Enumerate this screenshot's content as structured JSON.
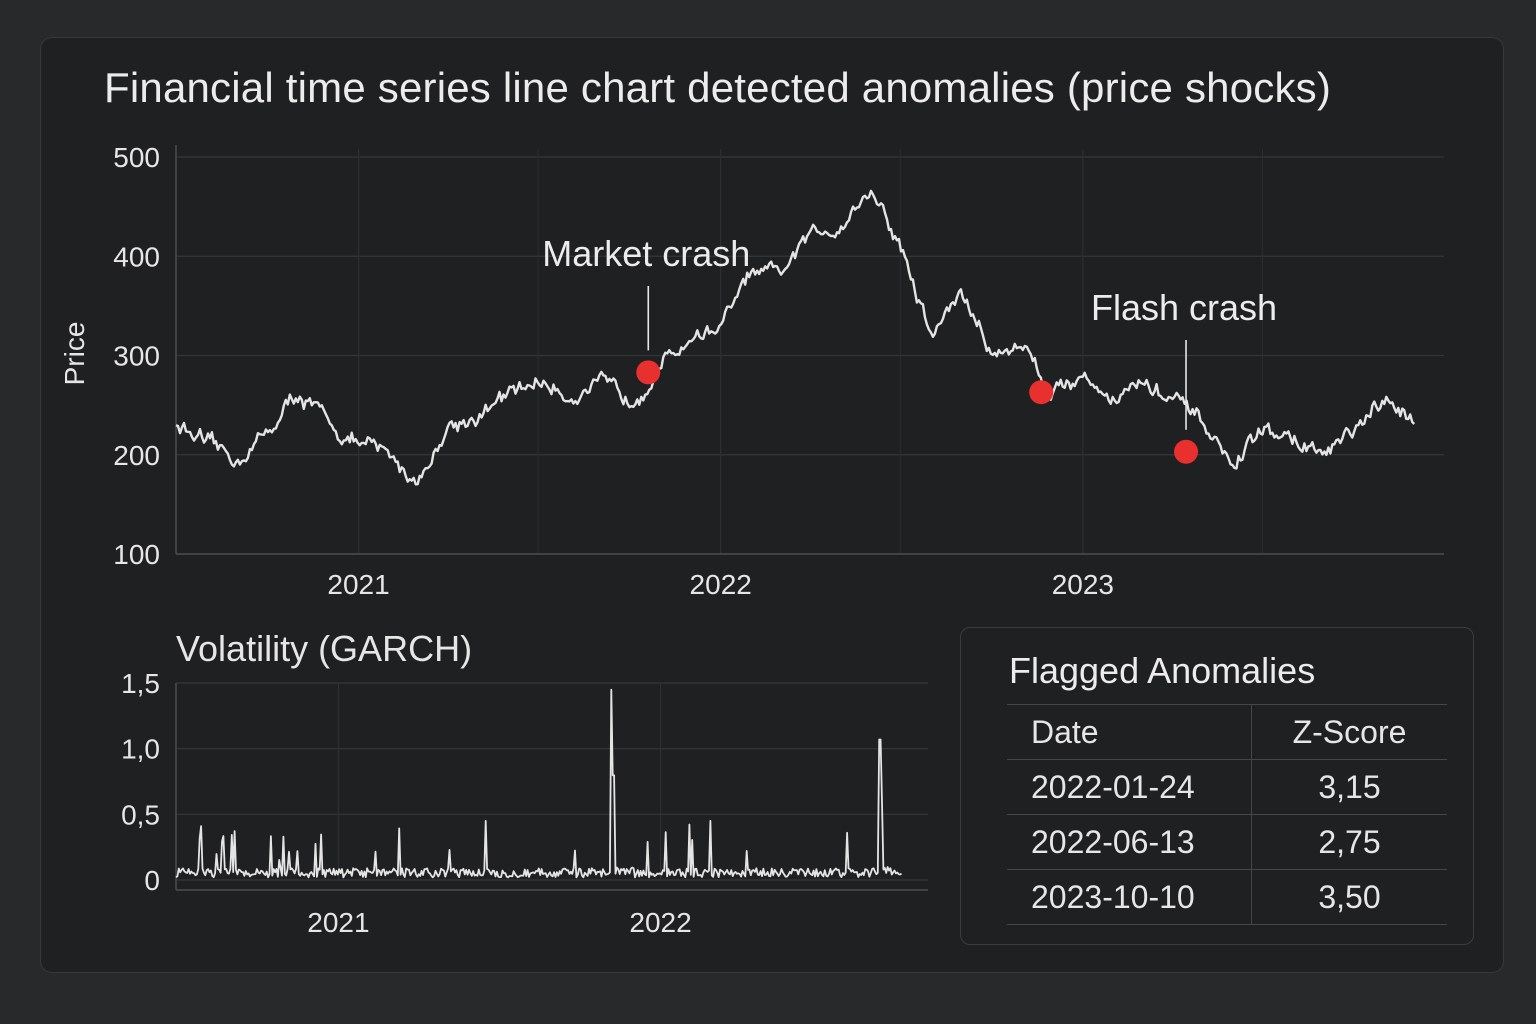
{
  "title": "Financial time series line chart detected anomalies (price shocks)",
  "chart_data": [
    {
      "type": "line",
      "title": "Financial time series line chart detected anomalies (price shocks)",
      "ylabel": "Price",
      "xlabel": "",
      "ylim": [
        100,
        500
      ],
      "xlim": [
        "2020-07-01",
        "2023-12-31"
      ],
      "yticks": [
        "500",
        "400",
        "300",
        "200",
        "100"
      ],
      "xticks": [
        "2021",
        "2022",
        "2023"
      ],
      "grid": true,
      "line_color": "#e4e4e4",
      "anomaly_color": "#e8302e",
      "series": [
        {
          "x": [
            "2020-07-01",
            "2020-08-01",
            "2020-09-01",
            "2020-10-01",
            "2020-11-01",
            "2020-12-01",
            "2021-01-01",
            "2021-02-01",
            "2021-03-01",
            "2021-04-01",
            "2021-05-01",
            "2021-06-01",
            "2021-07-01",
            "2021-08-01",
            "2021-09-01",
            "2021-10-01",
            "2021-11-01",
            "2021-12-01",
            "2022-01-01",
            "2022-02-01",
            "2022-03-01",
            "2022-04-01",
            "2022-05-01",
            "2022-06-01",
            "2022-07-01",
            "2022-08-01",
            "2022-09-01",
            "2022-10-01",
            "2022-11-01",
            "2022-12-01",
            "2023-01-01",
            "2023-02-01",
            "2023-03-01",
            "2023-04-01",
            "2023-05-01",
            "2023-06-01",
            "2023-07-01",
            "2023-08-01",
            "2023-09-01",
            "2023-10-01",
            "2023-11-01",
            "2023-12-01"
          ],
          "values": [
            232,
            208,
            195,
            222,
            262,
            232,
            210,
            200,
            172,
            228,
            240,
            258,
            275,
            260,
            270,
            255,
            290,
            318,
            330,
            382,
            380,
            420,
            432,
            468,
            410,
            320,
            365,
            300,
            312,
            265,
            280,
            258,
            272,
            255,
            232,
            188,
            225,
            215,
            200,
            222,
            250,
            238
          ]
        }
      ],
      "annotations": [
        {
          "text": "Market crash",
          "x": "2021-10-20",
          "y": 283
        },
        {
          "text": "Flash crash",
          "x": "2023-04-15",
          "y": 203
        }
      ],
      "anomalies": [
        {
          "x": "2021-10-20",
          "y": 283
        },
        {
          "x": "2022-11-20",
          "y": 263
        },
        {
          "x": "2023-04-15",
          "y": 203
        }
      ]
    },
    {
      "type": "line",
      "title": "Volatility (GARCH)",
      "ylim": [
        0,
        1.5
      ],
      "xlim": [
        "2020-07-01",
        "2022-10-31"
      ],
      "yticks": [
        "1,5",
        "1,0",
        "0,5",
        "0"
      ],
      "xticks": [
        "2021",
        "2022"
      ],
      "grid": true,
      "series": [
        {
          "x": [
            "2020-07-01",
            "2020-08-01",
            "2020-09-01",
            "2020-10-01",
            "2020-11-01",
            "2020-12-01",
            "2021-01-01",
            "2021-02-01",
            "2021-03-01",
            "2021-04-01",
            "2021-05-01",
            "2021-06-01",
            "2021-07-01",
            "2021-08-01",
            "2021-09-01",
            "2021-10-01",
            "2021-11-01",
            "2021-12-01",
            "2022-01-01",
            "2022-02-01",
            "2022-03-01",
            "2022-04-01",
            "2022-05-01",
            "2022-06-01",
            "2022-07-01",
            "2022-08-01",
            "2022-09-01",
            "2022-10-01"
          ],
          "values": [
            0.05,
            0.04,
            0.06,
            0.05,
            0.08,
            0.05,
            0.04,
            0.05,
            0.1,
            0.05,
            0.06,
            0.05,
            0.08,
            0.07,
            0.1,
            0.12,
            1.45,
            0.06,
            0.05,
            0.07,
            0.06,
            0.08,
            0.07,
            0.08,
            0.12,
            0.15,
            1.07,
            0.08
          ]
        }
      ]
    }
  ],
  "table": {
    "title": "Flagged Anomalies",
    "headers": [
      "Date",
      "Z-Score"
    ],
    "rows": [
      [
        "2022-01-24",
        "3,15"
      ],
      [
        "2022-06-13",
        "2,75"
      ],
      [
        "2023-10-10",
        "3,50"
      ]
    ]
  }
}
